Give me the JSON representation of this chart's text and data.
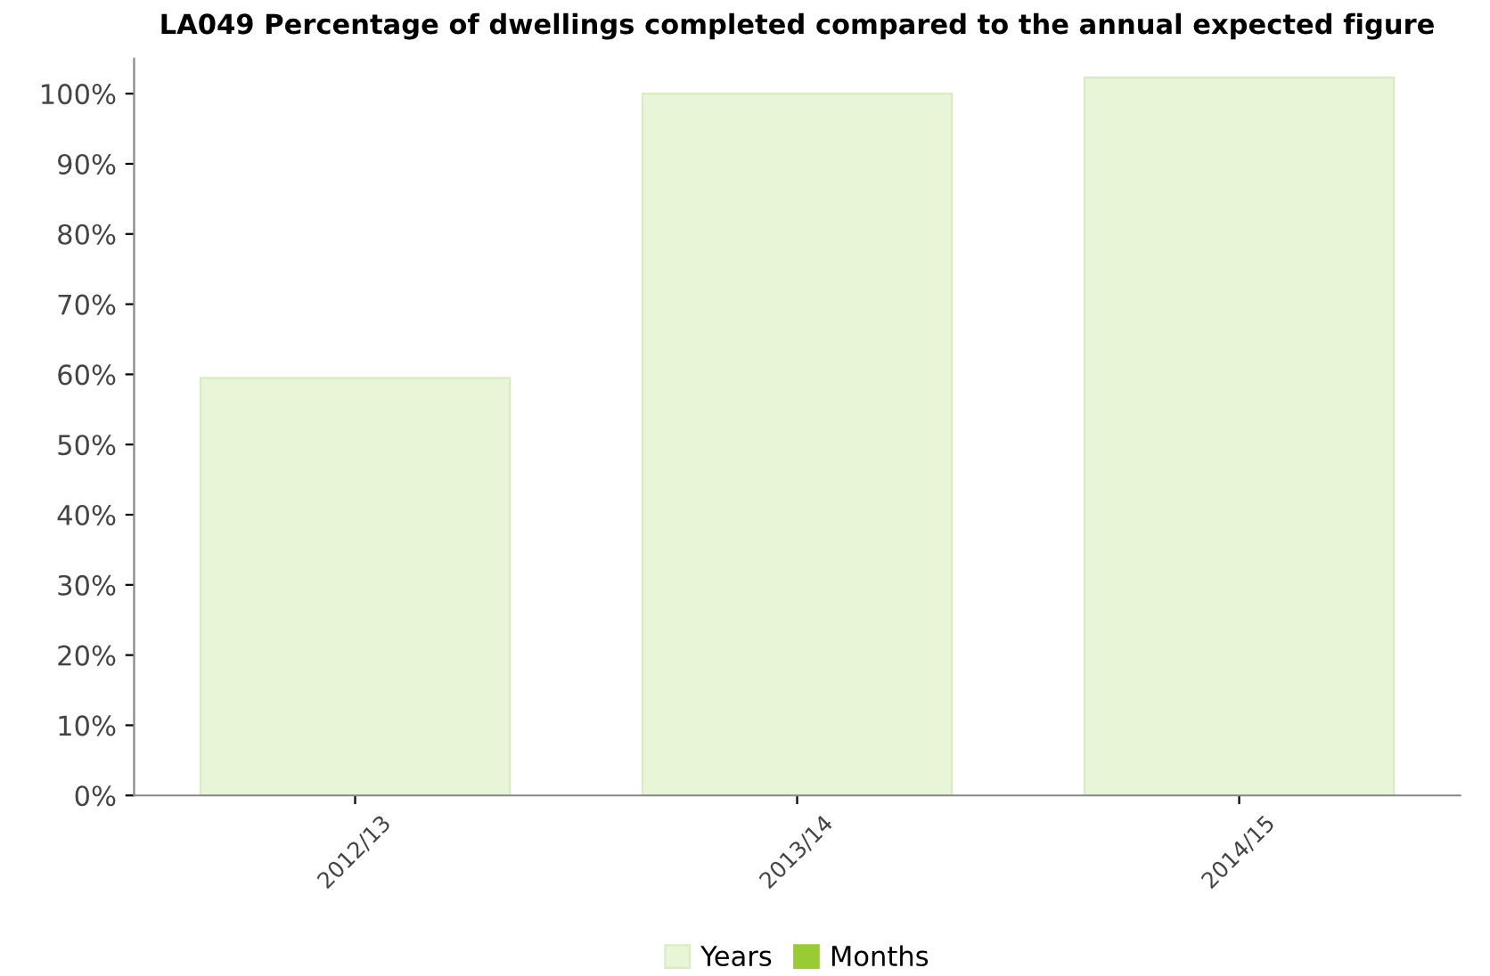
{
  "chart_data": {
    "type": "bar",
    "title": "LA049 Percentage of dwellings completed compared to the annual expected figure",
    "categories": [
      "2012/13",
      "2013/14",
      "2014/15"
    ],
    "series": [
      {
        "name": "Years",
        "color": "#e9f5d7",
        "values": [
          59.5,
          100,
          102.3
        ]
      },
      {
        "name": "Months",
        "color": "#99cc33",
        "values": [
          null,
          null,
          null
        ]
      }
    ],
    "ylim": [
      0,
      105
    ],
    "yticks": [
      {
        "value": 0,
        "label": "0%"
      },
      {
        "value": 10,
        "label": "10%"
      },
      {
        "value": 20,
        "label": "20%"
      },
      {
        "value": 30,
        "label": "30%"
      },
      {
        "value": 40,
        "label": "40%"
      },
      {
        "value": 50,
        "label": "50%"
      },
      {
        "value": 60,
        "label": "60%"
      },
      {
        "value": 70,
        "label": "70%"
      },
      {
        "value": 80,
        "label": "80%"
      },
      {
        "value": 90,
        "label": "90%"
      },
      {
        "value": 100,
        "label": "100%"
      }
    ],
    "grid": false,
    "legend": "bottom"
  }
}
